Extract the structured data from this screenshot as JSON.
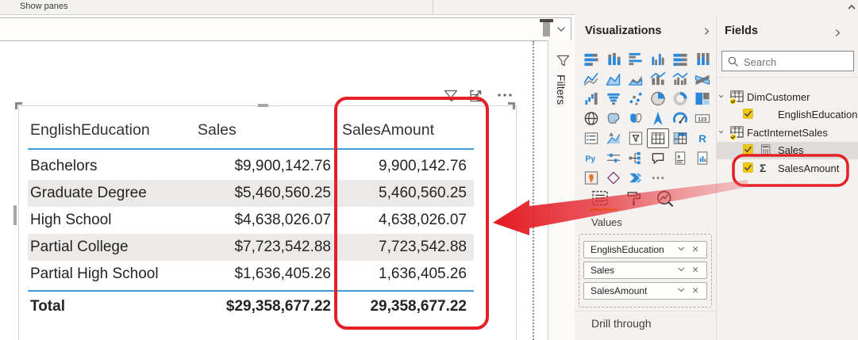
{
  "ribbon": {
    "show_panes_label": "Show panes"
  },
  "filters_pane": {
    "label": "Filters"
  },
  "canvas": {
    "table": {
      "columns": [
        "EnglishEducation",
        "Sales",
        "SalesAmount"
      ],
      "rows": [
        [
          "Bachelors",
          "$9,900,142.76",
          "9,900,142.76"
        ],
        [
          "Graduate Degree",
          "$5,460,560.25",
          "5,460,560.25"
        ],
        [
          "High School",
          "$4,638,026.07",
          "4,638,026.07"
        ],
        [
          "Partial College",
          "$7,723,542.88",
          "7,723,542.88"
        ],
        [
          "Partial High School",
          "$1,636,405.26",
          "1,636,405.26"
        ]
      ],
      "total": [
        "Total",
        "$29,358,677.22",
        "29,358,677.22"
      ]
    }
  },
  "visualizations": {
    "title": "Visualizations",
    "gallery": [
      "stacked-bar-chart",
      "stacked-column-chart",
      "clustered-bar-chart",
      "clustered-column-chart",
      "100-stacked-bar-chart",
      "100-stacked-column-chart",
      "line-chart",
      "area-chart",
      "stacked-area-chart",
      "line-and-stacked-column-chart",
      "line-and-clustered-column-chart",
      "ribbon-chart",
      "waterfall-chart",
      "funnel-chart",
      "scatter-chart",
      "pie-chart",
      "donut-chart",
      "treemap",
      "map",
      "filled-map",
      "shape-map",
      "azure-map",
      "gauge",
      "card",
      "multi-row-card",
      "kpi",
      "slicer",
      "table",
      "matrix",
      "r-script-visual",
      "python-visual",
      "key-influencers",
      "decomposition-tree",
      "q-and-a",
      "smart-narrative",
      "paginated-report",
      "arcgis-map",
      "power-apps",
      "power-automate",
      "more-options"
    ],
    "selected_visual": "table",
    "values_label": "Values",
    "wells": [
      "EnglishEducation",
      "Sales",
      "SalesAmount"
    ],
    "drill_through_label": "Drill through"
  },
  "fields_pane": {
    "title": "Fields",
    "search_placeholder": "Search",
    "tree": [
      {
        "label": "DimCustomer",
        "kind": "table",
        "expanded": true
      },
      {
        "label": "EnglishEducation",
        "kind": "column",
        "checked": true
      },
      {
        "label": "FactInternetSales",
        "kind": "table",
        "expanded": true
      },
      {
        "label": "Sales",
        "kind": "measure",
        "checked": true,
        "selected": true
      },
      {
        "label": "SalesAmount",
        "kind": "sum",
        "checked": true,
        "annotated": true
      }
    ]
  },
  "colors": {
    "annotation_red": "#e61e25",
    "accent_blue": "#3f9bd8",
    "pbi_yellow": "#F2C80F",
    "zebra_gray": "#ebeae9",
    "selected_row_gray": "#dedcda"
  }
}
